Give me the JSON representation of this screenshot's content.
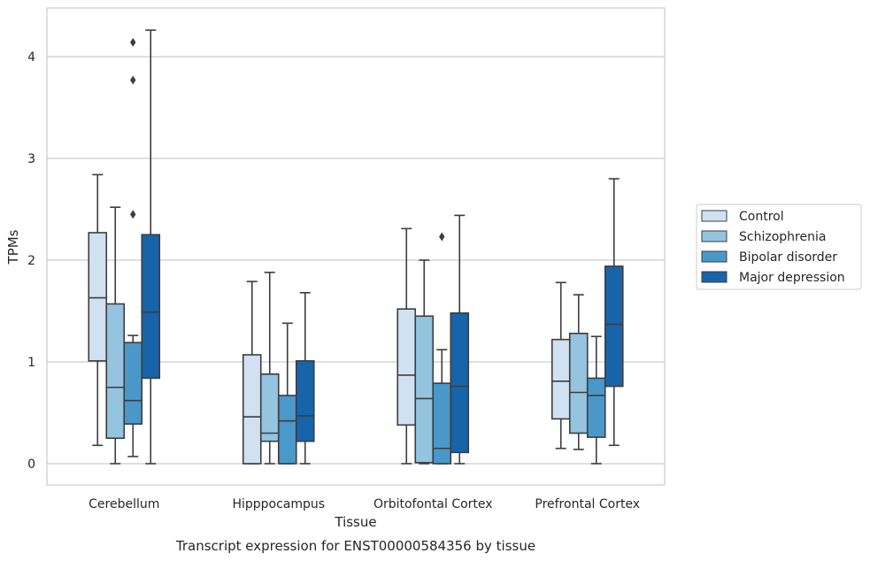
{
  "caption": "Transcript expression for ENST00000584356 by tissue",
  "chart_data": {
    "type": "boxplot",
    "xlabel": "Tissue",
    "ylabel": "TPMs",
    "ylim": [
      -0.2,
      4.65
    ],
    "yticks": [
      0,
      1,
      2,
      3,
      4
    ],
    "grid": "horizontal",
    "legend_position": "right",
    "categories": [
      "Cerebellum",
      "Hipppocampus",
      "Orbitofontal Cortex",
      "Prefrontal Cortex"
    ],
    "series": [
      {
        "name": "Control",
        "color": "#d0e1f2",
        "boxes": [
          {
            "whislo": 0.18,
            "q1": 1.01,
            "med": 1.63,
            "q3": 2.27,
            "whishi": 2.84,
            "fliers": []
          },
          {
            "whislo": 0.0,
            "q1": 0.0,
            "med": 0.46,
            "q3": 1.07,
            "whishi": 1.79,
            "fliers": []
          },
          {
            "whislo": 0.0,
            "q1": 0.38,
            "med": 0.87,
            "q3": 1.52,
            "whishi": 2.31,
            "fliers": []
          },
          {
            "whislo": 0.15,
            "q1": 0.44,
            "med": 0.81,
            "q3": 1.22,
            "whishi": 1.78,
            "fliers": []
          }
        ]
      },
      {
        "name": "Schizophrenia",
        "color": "#94c4df",
        "boxes": [
          {
            "whislo": 0.0,
            "q1": 0.25,
            "med": 0.75,
            "q3": 1.57,
            "whishi": 2.52,
            "fliers": []
          },
          {
            "whislo": 0.0,
            "q1": 0.22,
            "med": 0.3,
            "q3": 0.88,
            "whishi": 1.88,
            "fliers": []
          },
          {
            "whislo": 0.0,
            "q1": 0.01,
            "med": 0.64,
            "q3": 1.45,
            "whishi": 2.0,
            "fliers": []
          },
          {
            "whislo": 0.14,
            "q1": 0.3,
            "med": 0.7,
            "q3": 1.28,
            "whishi": 1.66,
            "fliers": []
          }
        ]
      },
      {
        "name": "Bipolar disorder",
        "color": "#4a98c9",
        "boxes": [
          {
            "whislo": 0.07,
            "q1": 0.39,
            "med": 0.62,
            "q3": 1.19,
            "whishi": 1.26,
            "fliers": [
              2.45,
              3.77,
              4.14
            ]
          },
          {
            "whislo": 0.0,
            "q1": 0.0,
            "med": 0.42,
            "q3": 0.67,
            "whishi": 1.38,
            "fliers": []
          },
          {
            "whislo": 0.0,
            "q1": 0.0,
            "med": 0.15,
            "q3": 0.79,
            "whishi": 1.12,
            "fliers": [
              2.23
            ]
          },
          {
            "whislo": 0.0,
            "q1": 0.26,
            "med": 0.67,
            "q3": 0.84,
            "whishi": 1.25,
            "fliers": []
          }
        ]
      },
      {
        "name": "Major depression",
        "color": "#1764ab",
        "boxes": [
          {
            "whislo": 0.0,
            "q1": 0.84,
            "med": 1.49,
            "q3": 2.25,
            "whishi": 4.26,
            "fliers": []
          },
          {
            "whislo": 0.0,
            "q1": 0.22,
            "med": 0.47,
            "q3": 1.01,
            "whishi": 1.68,
            "fliers": []
          },
          {
            "whislo": 0.0,
            "q1": 0.11,
            "med": 0.76,
            "q3": 1.48,
            "whishi": 2.44,
            "fliers": []
          },
          {
            "whislo": 0.18,
            "q1": 0.76,
            "med": 1.37,
            "q3": 1.94,
            "whishi": 2.8,
            "fliers": []
          }
        ]
      }
    ]
  }
}
